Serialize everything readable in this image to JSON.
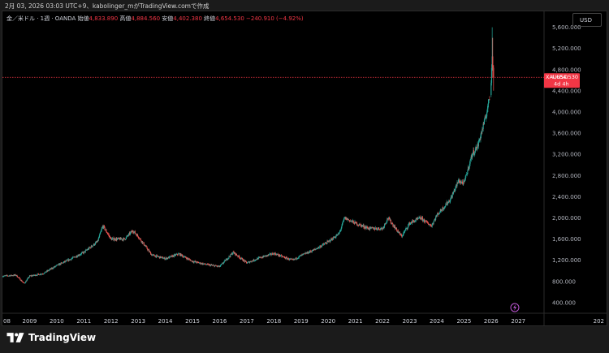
{
  "header": {
    "created_line": "2月 03, 2026 03:03 UTC+9、kabolinger_mがTradingView.comで作成"
  },
  "legend": {
    "symbol_desc": "金／米ドル · 1週 · OANDA",
    "open_label": "始値",
    "open_value": "4,833.890",
    "high_label": "高値",
    "high_value": "4,884.560",
    "low_label": "安値",
    "low_value": "4,402.380",
    "close_label": "終値",
    "close_value": "4,654.530",
    "change": "−240.910 (−4.92%)"
  },
  "currency_button": "USD",
  "price_tag": {
    "symbol": "XAUUSD",
    "price": "4,654.530",
    "countdown": "4d 4h"
  },
  "brand": "TradingView",
  "icons": {
    "logo": "tradingview-logo-icon",
    "marker": "lightning-event-icon"
  },
  "colors": {
    "up": "#26a69a",
    "down": "#ef5350",
    "background": "#000000",
    "price_line": "#f23645"
  },
  "chart_data": {
    "type": "candlestick",
    "title": "金／米ドル · 1週 · OANDA",
    "xlabel": "",
    "ylabel": "",
    "yaxis_position": "right",
    "grid": false,
    "ylim": [
      200,
      5900
    ],
    "xlim": [
      2008.0,
      2027.95
    ],
    "x_tick_labels": [
      "08",
      "2009",
      "2010",
      "2011",
      "2012",
      "2013",
      "2014",
      "2015",
      "2016",
      "2017",
      "2018",
      "2019",
      "2020",
      "2021",
      "2022",
      "2023",
      "2024",
      "2025",
      "2026",
      "2027",
      "202"
    ],
    "y_tick_labels": [
      "400.000",
      "800.000",
      "1,200.000",
      "1,600.000",
      "2,000.000",
      "2,400.000",
      "2,800.000",
      "3,200.000",
      "3,600.000",
      "4,000.000",
      "4,400.000",
      "4,800.000",
      "5,200.000",
      "5,600.000"
    ],
    "last_price": 4654.53,
    "x": [
      2008.0,
      2008.5,
      2008.8,
      2009.0,
      2009.5,
      2010.0,
      2010.5,
      2011.0,
      2011.5,
      2011.7,
      2012.0,
      2012.5,
      2012.8,
      2013.0,
      2013.5,
      2014.0,
      2014.5,
      2015.0,
      2015.5,
      2016.0,
      2016.5,
      2017.0,
      2017.5,
      2018.0,
      2018.5,
      2018.7,
      2019.0,
      2019.5,
      2020.0,
      2020.4,
      2020.6,
      2021.0,
      2021.5,
      2022.0,
      2022.2,
      2022.7,
      2023.0,
      2023.4,
      2023.8,
      2024.0,
      2024.5,
      2024.8,
      2025.0,
      2025.3,
      2025.5,
      2025.8,
      2025.95,
      2026.05,
      2026.09
    ],
    "close": [
      900,
      920,
      760,
      900,
      950,
      1100,
      1220,
      1350,
      1550,
      1850,
      1600,
      1600,
      1760,
      1650,
      1300,
      1230,
      1320,
      1180,
      1120,
      1080,
      1350,
      1150,
      1250,
      1330,
      1230,
      1200,
      1290,
      1400,
      1550,
      1700,
      2000,
      1900,
      1800,
      1800,
      2000,
      1650,
      1900,
      2000,
      1850,
      2050,
      2350,
      2700,
      2650,
      3200,
      3350,
      3900,
      4300,
      4800,
      4654.53
    ]
  }
}
